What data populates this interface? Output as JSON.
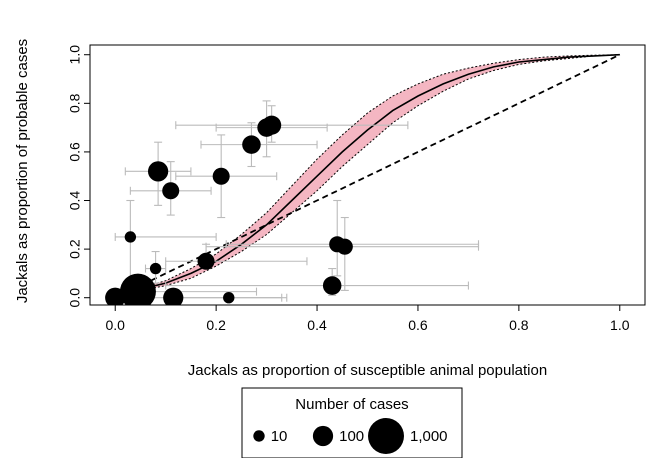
{
  "chart_data": {
    "type": "scatter",
    "title": "",
    "xlabel": "Jackals as proportion of susceptible animal population",
    "ylabel": "Jackals as proportion of probable cases",
    "xlim": [
      -0.05,
      1.05
    ],
    "ylim": [
      -0.03,
      1.04
    ],
    "x_ticks": [
      "0.0",
      "0.2",
      "0.4",
      "0.6",
      "0.8",
      "1.0"
    ],
    "y_ticks": [
      "0.0",
      "0.2",
      "0.4",
      "0.6",
      "0.8",
      "1.0"
    ],
    "grid": false,
    "legend": {
      "title": "Number of cases",
      "placement": "bottom-center",
      "entries": [
        {
          "label": "10",
          "n": 10
        },
        {
          "label": "100",
          "n": 100
        },
        {
          "label": "1,000",
          "n": 1000
        }
      ]
    },
    "colors": {
      "points": "#000000",
      "error_bars": "#bbbbbb",
      "band_fill": "#f4b6c2",
      "fit_line": "#000000"
    },
    "points": [
      {
        "x": 0.0,
        "y": 0.0,
        "n": 100,
        "xerr": [
          0.0,
          0.03
        ],
        "yerr": [
          0.0,
          0.02
        ]
      },
      {
        "x": 0.03,
        "y": 0.25,
        "n": 10,
        "xerr": [
          0.0,
          0.2
        ],
        "yerr": [
          0.04,
          0.4
        ]
      },
      {
        "x": 0.045,
        "y": 0.025,
        "n": 1000,
        "xerr": [
          0.03,
          0.28
        ],
        "yerr": [
          0.01,
          0.05
        ]
      },
      {
        "x": 0.08,
        "y": 0.12,
        "n": 10,
        "xerr": [
          0.06,
          0.1
        ],
        "yerr": [
          0.06,
          0.19
        ]
      },
      {
        "x": 0.085,
        "y": 0.52,
        "n": 100,
        "xerr": [
          0.02,
          0.15
        ],
        "yerr": [
          0.38,
          0.64
        ]
      },
      {
        "x": 0.11,
        "y": 0.44,
        "n": 50,
        "xerr": [
          0.03,
          0.19
        ],
        "yerr": [
          0.34,
          0.56
        ]
      },
      {
        "x": 0.115,
        "y": 0.0,
        "n": 100,
        "xerr": [
          0.05,
          0.33
        ],
        "yerr": [
          0.0,
          0.02
        ]
      },
      {
        "x": 0.18,
        "y": 0.15,
        "n": 50,
        "xerr": [
          0.1,
          0.38
        ],
        "yerr": [
          0.12,
          0.22
        ]
      },
      {
        "x": 0.21,
        "y": 0.5,
        "n": 50,
        "xerr": [
          0.12,
          0.32
        ],
        "yerr": [
          0.33,
          0.67
        ]
      },
      {
        "x": 0.225,
        "y": 0.0,
        "n": 10,
        "xerr": [
          0.1,
          0.34
        ],
        "yerr": [
          0.0,
          0.01
        ]
      },
      {
        "x": 0.27,
        "y": 0.63,
        "n": 70,
        "xerr": [
          0.17,
          0.4
        ],
        "yerr": [
          0.54,
          0.72
        ]
      },
      {
        "x": 0.3,
        "y": 0.7,
        "n": 70,
        "xerr": [
          0.2,
          0.42
        ],
        "yerr": [
          0.58,
          0.81
        ]
      },
      {
        "x": 0.31,
        "y": 0.71,
        "n": 80,
        "xerr": [
          0.12,
          0.58
        ],
        "yerr": [
          0.64,
          0.79
        ]
      },
      {
        "x": 0.43,
        "y": 0.05,
        "n": 70,
        "xerr": [
          0.1,
          0.7
        ],
        "yerr": [
          0.01,
          0.12
        ]
      },
      {
        "x": 0.44,
        "y": 0.22,
        "n": 40,
        "xerr": [
          0.22,
          0.72
        ],
        "yerr": [
          0.09,
          0.4
        ]
      },
      {
        "x": 0.455,
        "y": 0.21,
        "n": 40,
        "xerr": [
          0.18,
          0.72
        ],
        "yerr": [
          0.03,
          0.33
        ]
      }
    ],
    "fit_curve": {
      "x": [
        0,
        0.05,
        0.1,
        0.15,
        0.2,
        0.25,
        0.3,
        0.35,
        0.4,
        0.45,
        0.5,
        0.55,
        0.6,
        0.65,
        0.7,
        0.75,
        0.8,
        0.85,
        0.9,
        0.95,
        1.0
      ],
      "y": [
        0.0,
        0.035,
        0.06,
        0.1,
        0.15,
        0.22,
        0.3,
        0.4,
        0.5,
        0.6,
        0.69,
        0.77,
        0.83,
        0.88,
        0.92,
        0.95,
        0.97,
        0.98,
        0.99,
        0.995,
        1.0
      ],
      "band_lower": [
        0.0,
        0.03,
        0.05,
        0.08,
        0.13,
        0.19,
        0.26,
        0.35,
        0.44,
        0.54,
        0.63,
        0.72,
        0.79,
        0.85,
        0.9,
        0.935,
        0.96,
        0.975,
        0.985,
        0.995,
        1.0
      ],
      "band_upper": [
        0.0,
        0.04,
        0.07,
        0.12,
        0.18,
        0.26,
        0.35,
        0.46,
        0.57,
        0.67,
        0.76,
        0.83,
        0.88,
        0.92,
        0.945,
        0.965,
        0.98,
        0.99,
        0.995,
        0.998,
        1.0
      ]
    },
    "null_curve": {
      "x": [
        0,
        0.05,
        0.1,
        0.15,
        0.2,
        0.25,
        0.3,
        0.35,
        0.4,
        0.45,
        0.5,
        0.55,
        0.6,
        0.65,
        0.7,
        0.75,
        0.8,
        0.85,
        0.9,
        0.95,
        1.0
      ],
      "y": [
        0.0,
        0.05,
        0.1,
        0.15,
        0.2,
        0.25,
        0.3,
        0.35,
        0.4,
        0.45,
        0.5,
        0.55,
        0.6,
        0.65,
        0.7,
        0.75,
        0.8,
        0.85,
        0.9,
        0.95,
        1.0
      ]
    }
  }
}
